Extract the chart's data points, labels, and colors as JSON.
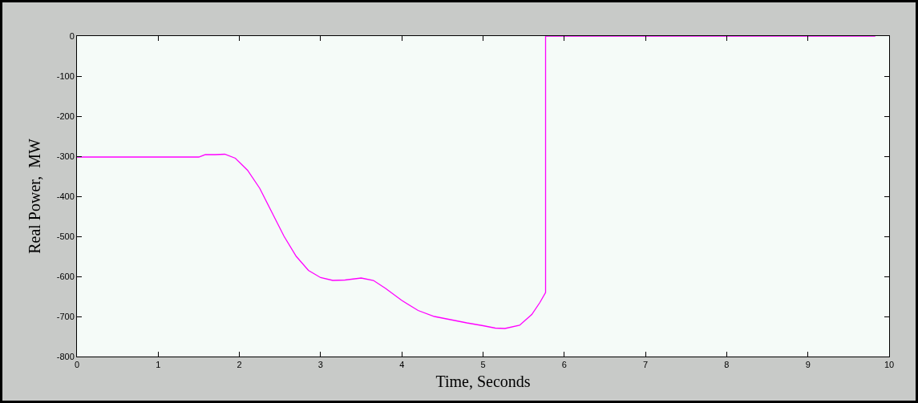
{
  "chart_data": {
    "type": "line",
    "xlabel": "Time, Seconds",
    "ylabel": "Real Power,  MW",
    "x": [
      0,
      1.5,
      1.58,
      1.7,
      1.82,
      1.95,
      2.1,
      2.25,
      2.4,
      2.55,
      2.7,
      2.85,
      3.0,
      3.15,
      3.3,
      3.5,
      3.65,
      3.8,
      4.0,
      4.2,
      4.4,
      4.6,
      4.8,
      5.0,
      5.15,
      5.27,
      5.45,
      5.6,
      5.7,
      5.77,
      5.77,
      9.83
    ],
    "series": [
      {
        "color": "#ff00ff",
        "values": [
          -302,
          -302,
          -296,
          -296,
          -295,
          -305,
          -335,
          -380,
          -440,
          -500,
          -550,
          -585,
          -603,
          -610,
          -609,
          -604,
          -610,
          -630,
          -660,
          -685,
          -700,
          -708,
          -716,
          -723,
          -729,
          -730,
          -722,
          -695,
          -665,
          -640,
          0,
          0
        ]
      }
    ],
    "xlim": [
      0,
      10
    ],
    "xticks": [
      0,
      1,
      2,
      3,
      4,
      5,
      6,
      7,
      8,
      9,
      10
    ],
    "ylim": [
      -800,
      0
    ],
    "yticks": [
      -800,
      -700,
      -600,
      -500,
      -400,
      -300,
      -200,
      -100,
      0
    ],
    "grid": false,
    "marker": "none",
    "line_style": "solid"
  }
}
